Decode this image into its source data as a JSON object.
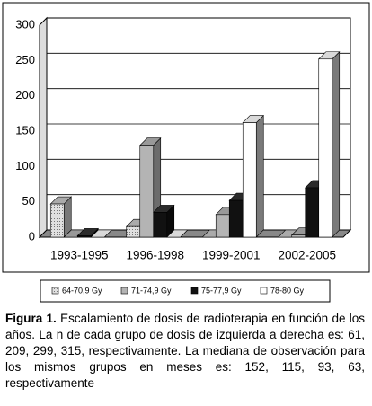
{
  "chart_data": {
    "type": "bar3d",
    "categories": [
      "1993-1995",
      "1996-1998",
      "1999-2001",
      "2002-2005"
    ],
    "series": [
      {
        "name": "64-70,9 Gy",
        "color": "#c8c8c8",
        "values": [
          47,
          15,
          0,
          0
        ]
      },
      {
        "name": "71-74,9 Gy",
        "color": "#b4b4b4",
        "values": [
          0,
          130,
          32,
          3
        ]
      },
      {
        "name": "75-77,9 Gy",
        "color": "#111111",
        "values": [
          2,
          35,
          52,
          70
        ]
      },
      {
        "name": "78-80 Gy",
        "color": "#ffffff",
        "values": [
          0,
          0,
          162,
          252
        ]
      }
    ],
    "ylim": [
      0,
      300
    ],
    "yticks": [
      0,
      50,
      100,
      150,
      200,
      250,
      300
    ],
    "grid": true,
    "caption_label": "Figura 1.",
    "caption": "Escalamiento de dosis de radioterapia en función de los años. La n de cada grupo de dosis de izquierda a derecha es: 61, 209, 299, 315, respectivamente. La mediana de observación para los mismos grupos en meses es: 152, 115, 93, 63, respectivamente"
  }
}
